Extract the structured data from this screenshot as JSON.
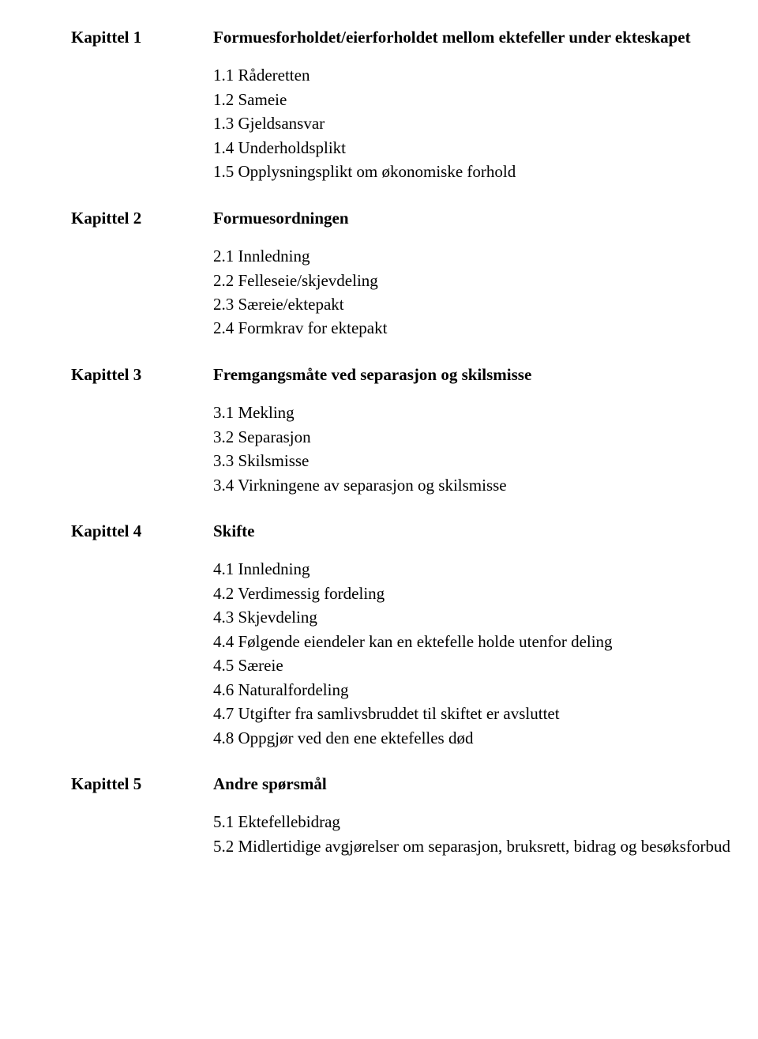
{
  "chapters": [
    {
      "label": "Kapittel 1",
      "title": "Formuesforholdet/eierforholdet mellom ektefeller under ekteskapet",
      "items": [
        "1.1 Råderetten",
        "1.2 Sameie",
        "1.3 Gjeldsansvar",
        "1.4 Underholdsplikt",
        "1.5 Opplysningsplikt om økonomiske forhold"
      ]
    },
    {
      "label": "Kapittel 2",
      "title": "Formuesordningen",
      "items": [
        "2.1 Innledning",
        "2.2 Felleseie/skjevdeling",
        "2.3 Særeie/ektepakt",
        "2.4 Formkrav for ektepakt"
      ]
    },
    {
      "label": "Kapittel 3",
      "title": "Fremgangsmåte ved separasjon og skilsmisse",
      "items": [
        "3.1 Mekling",
        "3.2 Separasjon",
        "3.3 Skilsmisse",
        "3.4 Virkningene av separasjon og skilsmisse"
      ]
    },
    {
      "label": "Kapittel 4",
      "title": "Skifte",
      "items": [
        "4.1 Innledning",
        "4.2 Verdimessig fordeling",
        "4.3 Skjevdeling",
        "4.4 Følgende eiendeler kan en ektefelle holde utenfor deling",
        "4.5 Særeie",
        "4.6 Naturalfordeling",
        "4.7 Utgifter fra samlivsbruddet til skiftet er avsluttet",
        "4.8 Oppgjør ved den ene ektefelles død"
      ]
    },
    {
      "label": "Kapittel 5",
      "title": "Andre spørsmål",
      "items": [
        "5.1 Ektefellebidrag",
        "5.2 Midlertidige avgjørelser om separasjon, bruksrett, bidrag og besøksforbud"
      ]
    }
  ]
}
